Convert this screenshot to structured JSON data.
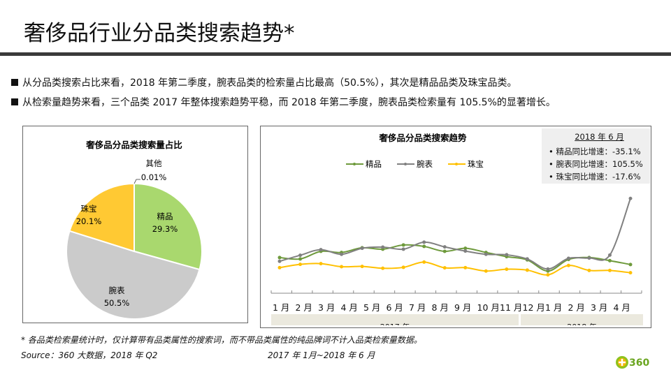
{
  "title": "奢侈品行业分品类搜索趋势*",
  "bullets": [
    "从分品类搜索占比来看，2018 年第二季度，腕表品类的检索量占比最高（50.5%），其次是精品品类及珠宝品类。",
    "从检索量趋势来看，三个品类 2017 年整体搜索趋势平稳，而 2018 年第二季度，腕表品类检索量有 105.5%的显著增长。"
  ],
  "footnote": "* 各品类检索量统计时，仅计算带有品类属性的搜索词，而不带品类属性的纯品牌词不计入品类检索量数据。",
  "source": "Source：360 大数据，2018 年 Q2",
  "period": "2017 年 1月~2018 年 6 月",
  "logo_text": "360",
  "info_box": {
    "heading": "2018 年 6 月",
    "lines": [
      "精品同比增速：-35.1%",
      "腕表同比增速：105.5%",
      "珠宝同比增速：-17.6%"
    ]
  },
  "chart_data": [
    {
      "type": "pie",
      "title": "奢侈品分品类搜索量占比",
      "slices": [
        {
          "label": "精品",
          "value": 29.3,
          "display": "29.3%",
          "color": "#A9D86E"
        },
        {
          "label": "腕表",
          "value": 50.5,
          "display": "50.5%",
          "color": "#CBCBCB"
        },
        {
          "label": "珠宝",
          "value": 20.1,
          "display": "20.1%",
          "color": "#FFC933"
        },
        {
          "label": "其他",
          "value": 0.01,
          "display": "0.01%",
          "color": "#888888"
        }
      ]
    },
    {
      "type": "line",
      "title": "奢侈品分品类搜索趋势",
      "legend": "top",
      "x_tick_labels": [
        "1 月",
        "2 月",
        "3 月",
        "4 月",
        "5 月",
        "6 月",
        "7 月",
        "8 月",
        "9 月",
        "10 月",
        "11 月",
        "12 月",
        "1 月",
        "2 月",
        "3 月",
        "4 月",
        "5 月",
        "6 月"
      ],
      "year_groups": [
        {
          "label": "2017 年",
          "count": 12
        },
        {
          "label": "2018 年",
          "count": 6
        }
      ],
      "y_axis": "relative index (no labels shown)",
      "series": [
        {
          "name": "精品",
          "color": "#6E9A3C",
          "values": [
            38.3,
            36.8,
            45,
            43.8,
            48.8,
            47.3,
            51.8,
            50.3,
            45,
            48.3,
            43.8,
            39.3,
            35.8,
            23.8,
            36.3,
            38.3,
            35,
            30.8
          ]
        },
        {
          "name": "腕表",
          "color": "#808080",
          "values": [
            34.3,
            40.8,
            46.8,
            41.8,
            48.3,
            49.5,
            47.3,
            54.8,
            49.8,
            45.3,
            41.8,
            41.3,
            36.8,
            26,
            37.5,
            37.8,
            41,
            101.8
          ]
        },
        {
          "name": "珠宝",
          "color": "#FFC000",
          "values": [
            27.5,
            31,
            31.8,
            28.5,
            28.8,
            26.8,
            27.8,
            33.5,
            27.3,
            27.5,
            23.8,
            25.8,
            24.8,
            19.8,
            29.8,
            24.5,
            24.5,
            22
          ]
        }
      ]
    }
  ]
}
